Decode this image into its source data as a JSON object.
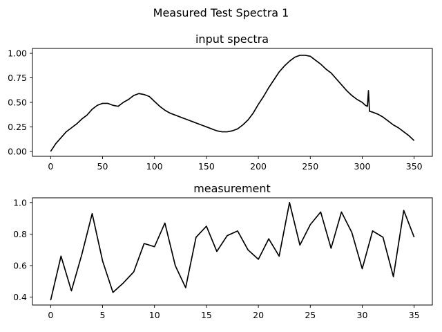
{
  "figure": {
    "suptitle": "Measured Test Spectra 1"
  },
  "chart_data": [
    {
      "type": "line",
      "title": "input spectra",
      "xlabel": "",
      "ylabel": "",
      "xlim": [
        -17.5,
        367.5
      ],
      "ylim": [
        -0.05,
        1.05
      ],
      "xticks": [
        0,
        50,
        100,
        150,
        200,
        250,
        300,
        350
      ],
      "xtick_labels": [
        "0",
        "50",
        "100",
        "150",
        "200",
        "250",
        "300",
        "350"
      ],
      "yticks": [
        0.0,
        0.25,
        0.5,
        0.75,
        1.0
      ],
      "ytick_labels": [
        "0.00",
        "0.25",
        "0.50",
        "0.75",
        "1.00"
      ],
      "grid": false,
      "line_color": "#000000",
      "series": [
        {
          "x": [
            0,
            5,
            10,
            15,
            20,
            25,
            30,
            35,
            40,
            45,
            50,
            55,
            60,
            65,
            70,
            75,
            80,
            85,
            90,
            95,
            100,
            105,
            110,
            115,
            120,
            125,
            130,
            135,
            140,
            145,
            150,
            155,
            160,
            165,
            170,
            175,
            180,
            185,
            190,
            195,
            200,
            205,
            210,
            215,
            220,
            225,
            230,
            235,
            240,
            245,
            250,
            255,
            260,
            265,
            270,
            275,
            280,
            285,
            290,
            295,
            300,
            303,
            305,
            306,
            307,
            310,
            315,
            320,
            325,
            330,
            335,
            340,
            345,
            350
          ],
          "y": [
            0.0,
            0.08,
            0.14,
            0.2,
            0.24,
            0.28,
            0.33,
            0.37,
            0.43,
            0.47,
            0.49,
            0.49,
            0.47,
            0.46,
            0.5,
            0.53,
            0.57,
            0.59,
            0.58,
            0.56,
            0.51,
            0.46,
            0.42,
            0.39,
            0.37,
            0.35,
            0.33,
            0.31,
            0.29,
            0.27,
            0.25,
            0.23,
            0.21,
            0.2,
            0.2,
            0.21,
            0.23,
            0.27,
            0.32,
            0.39,
            0.48,
            0.56,
            0.65,
            0.73,
            0.81,
            0.87,
            0.92,
            0.96,
            0.98,
            0.98,
            0.97,
            0.93,
            0.89,
            0.84,
            0.8,
            0.74,
            0.68,
            0.62,
            0.57,
            0.53,
            0.5,
            0.47,
            0.46,
            0.62,
            0.41,
            0.4,
            0.38,
            0.35,
            0.31,
            0.27,
            0.24,
            0.2,
            0.16,
            0.11
          ]
        }
      ]
    },
    {
      "type": "line",
      "title": "measurement",
      "xlabel": "",
      "ylabel": "",
      "xlim": [
        -1.75,
        36.75
      ],
      "ylim": [
        0.35,
        1.03
      ],
      "xticks": [
        0,
        5,
        10,
        15,
        20,
        25,
        30,
        35
      ],
      "xtick_labels": [
        "0",
        "5",
        "10",
        "15",
        "20",
        "25",
        "30",
        "35"
      ],
      "yticks": [
        0.4,
        0.6,
        0.8,
        1.0
      ],
      "ytick_labels": [
        "0.4",
        "0.6",
        "0.8",
        "1.0"
      ],
      "grid": false,
      "line_color": "#000000",
      "series": [
        {
          "x": [
            0,
            1,
            2,
            3,
            4,
            5,
            6,
            7,
            8,
            9,
            10,
            11,
            12,
            13,
            14,
            15,
            16,
            17,
            18,
            19,
            20,
            21,
            22,
            23,
            24,
            25,
            26,
            27,
            28,
            29,
            30,
            31,
            32,
            33,
            34,
            35
          ],
          "y": [
            0.38,
            0.66,
            0.44,
            0.67,
            0.93,
            0.63,
            0.43,
            0.49,
            0.56,
            0.74,
            0.72,
            0.87,
            0.6,
            0.46,
            0.78,
            0.85,
            0.69,
            0.79,
            0.82,
            0.7,
            0.64,
            0.77,
            0.66,
            1.0,
            0.73,
            0.86,
            0.94,
            0.71,
            0.94,
            0.81,
            0.58,
            0.82,
            0.78,
            0.53,
            0.95,
            0.78
          ]
        }
      ]
    }
  ]
}
